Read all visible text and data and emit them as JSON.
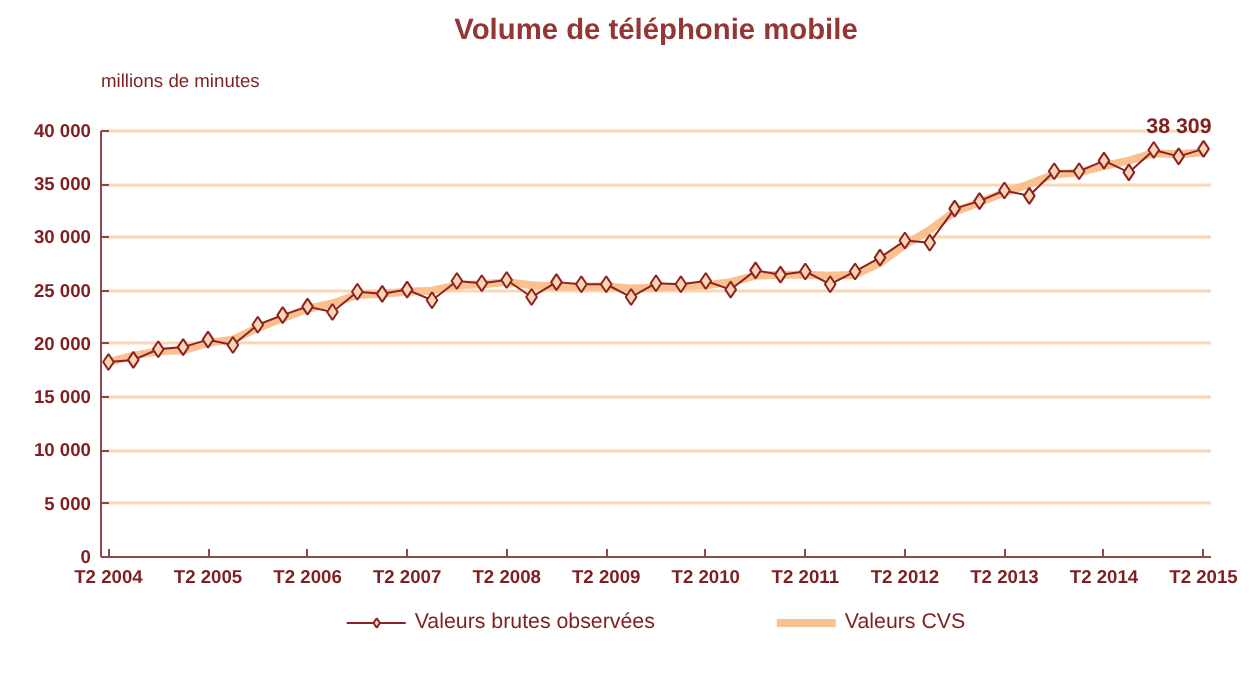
{
  "chart_data": {
    "type": "line",
    "title": "Volume de téléphonie mobile",
    "ylabel": "millions de minutes",
    "categories": [
      "T2 2004",
      null,
      null,
      null,
      "T2 2005",
      null,
      null,
      null,
      "T2 2006",
      null,
      null,
      null,
      "T2 2007",
      null,
      null,
      null,
      "T2 2008",
      null,
      null,
      null,
      "T2 2009",
      null,
      null,
      null,
      "T2 2010",
      null,
      null,
      null,
      "T2 2011",
      null,
      null,
      null,
      "T2 2012",
      null,
      null,
      null,
      "T2 2013",
      null,
      null,
      null,
      "T2 2014",
      null,
      null,
      null,
      "T2 2015"
    ],
    "series": [
      {
        "name": "Valeurs brutes observées",
        "color": "#8b2323",
        "marker": "diamond",
        "values": [
          18300,
          18500,
          19500,
          19700,
          20400,
          19900,
          21800,
          22700,
          23500,
          23000,
          24900,
          24700,
          25100,
          24100,
          25900,
          25700,
          26000,
          24400,
          25800,
          25600,
          25600,
          24400,
          25700,
          25600,
          25900,
          25100,
          26900,
          26500,
          26800,
          25600,
          26800,
          28100,
          29700,
          29500,
          32700,
          33400,
          34400,
          33900,
          36200,
          36200,
          37200,
          36100,
          38200,
          37600,
          38309
        ],
        "value_labels": [
          null,
          null,
          null,
          null,
          null,
          null,
          null,
          null,
          null,
          null,
          null,
          null,
          null,
          null,
          null,
          null,
          null,
          null,
          null,
          null,
          null,
          null,
          null,
          null,
          null,
          null,
          null,
          null,
          null,
          null,
          null,
          null,
          null,
          null,
          null,
          null,
          null,
          null,
          null,
          null,
          null,
          null,
          null,
          null,
          "38 309"
        ]
      },
      {
        "name": "Valeurs CVS",
        "color": "#fac090",
        "marker": "none",
        "values": [
          18300,
          18900,
          19300,
          19400,
          20100,
          20400,
          21500,
          22400,
          23300,
          23800,
          24600,
          24700,
          24900,
          25000,
          25500,
          25600,
          25800,
          25500,
          25400,
          25400,
          25400,
          25200,
          25300,
          25400,
          25500,
          25800,
          26400,
          26500,
          26500,
          26400,
          26500,
          27600,
          29300,
          30700,
          32400,
          33300,
          34200,
          35000,
          35900,
          36100,
          36700,
          37200,
          37900,
          37800,
          38000
        ]
      }
    ],
    "ylim": [
      0,
      40000
    ],
    "yticks": [
      {
        "value": 0,
        "label": "0"
      },
      {
        "value": 5000,
        "label": "5 000"
      },
      {
        "value": 10000,
        "label": "10 000"
      },
      {
        "value": 15000,
        "label": "15 000"
      },
      {
        "value": 20000,
        "label": "20 000"
      },
      {
        "value": 25000,
        "label": "25 000"
      },
      {
        "value": 30000,
        "label": "30 000"
      },
      {
        "value": 35000,
        "label": "35 000"
      },
      {
        "value": 40000,
        "label": "40 000"
      }
    ],
    "grid": "y",
    "legend": "bottom",
    "line_style": "solid"
  }
}
